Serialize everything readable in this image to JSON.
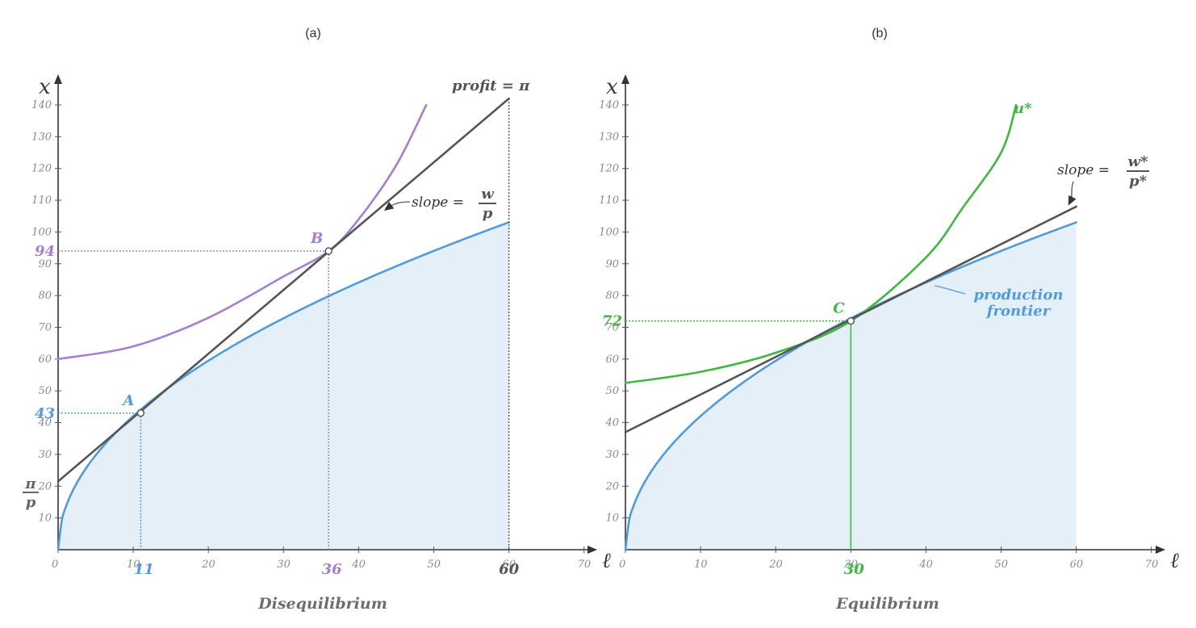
{
  "chart_data": [
    {
      "panel": "(a)",
      "type": "line",
      "caption": "Disequilibrium",
      "xlabel": "ℓ",
      "ylabel": "x",
      "xlim": [
        0,
        70
      ],
      "ylim": [
        0,
        140
      ],
      "xticks": [
        0,
        10,
        20,
        30,
        40,
        50,
        60,
        70
      ],
      "yticks": [
        10,
        20,
        30,
        40,
        50,
        60,
        70,
        80,
        90,
        100,
        110,
        120,
        130,
        140
      ],
      "grid": false,
      "colors": {
        "frontier": "#4f9be0",
        "indifference": "#a57fd0",
        "isoprofit": "#555555",
        "fill": "#dbe9f6"
      },
      "series": [
        {
          "name": "production frontier",
          "function": "x = 13.3·ℓ^0.5",
          "x": [
            0,
            11,
            36,
            60
          ],
          "y": [
            0,
            43,
            79,
            103
          ]
        },
        {
          "name": "indifference curve",
          "x": [
            0,
            10,
            20,
            30,
            36,
            40,
            45,
            49
          ],
          "y": [
            60,
            64,
            73,
            86,
            94,
            104,
            121,
            140
          ]
        },
        {
          "name": "isoprofit line",
          "x": [
            0,
            11,
            36,
            60
          ],
          "y": [
            21.5,
            43,
            94,
            142
          ]
        }
      ],
      "points": [
        {
          "label": "A",
          "x": 11,
          "y": 43,
          "x_text": "11",
          "y_text": "43",
          "color": "#4f9be0"
        },
        {
          "label": "B",
          "x": 36,
          "y": 94,
          "x_text": "36",
          "y_text": "94",
          "color": "#a57fd0"
        }
      ],
      "extra_marks": {
        "x_60": "60",
        "intercept_num": "π",
        "intercept_den": "p"
      },
      "annotations": {
        "profit": "profit = π",
        "slope_prefix": "slope =",
        "slope_num": "w",
        "slope_den": "p"
      }
    },
    {
      "panel": "(b)",
      "type": "line",
      "caption": "Equilibrium",
      "xlabel": "ℓ",
      "ylabel": "x",
      "xlim": [
        0,
        70
      ],
      "ylim": [
        0,
        140
      ],
      "xticks": [
        0,
        10,
        20,
        30,
        40,
        50,
        60,
        70
      ],
      "yticks": [
        10,
        20,
        30,
        40,
        50,
        60,
        70,
        80,
        90,
        100,
        110,
        120,
        130,
        140
      ],
      "grid": false,
      "colors": {
        "frontier": "#4f9be0",
        "indifference": "#3fb83f",
        "isoprofit": "#555555",
        "fill": "#dbe9f6"
      },
      "series": [
        {
          "name": "production frontier",
          "function": "x = 13.3·ℓ^0.5",
          "x": [
            0,
            30,
            60
          ],
          "y": [
            0,
            72,
            103
          ]
        },
        {
          "name": "u*",
          "x": [
            0,
            10,
            20,
            30,
            40,
            45,
            50,
            52
          ],
          "y": [
            52.5,
            56,
            62,
            72,
            92,
            108,
            125,
            140
          ]
        },
        {
          "name": "isoprofit line",
          "x": [
            0,
            30,
            60
          ],
          "y": [
            37,
            72,
            108
          ]
        }
      ],
      "points": [
        {
          "label": "C",
          "x": 30,
          "y": 72,
          "x_text": "30",
          "y_text": "72",
          "color": "#3fb83f"
        }
      ],
      "annotations": {
        "u_star": "u*",
        "slope_prefix": "slope =",
        "slope_num": "w*",
        "slope_den": "p*",
        "frontier_label_1": "production",
        "frontier_label_2": "frontier"
      }
    }
  ]
}
